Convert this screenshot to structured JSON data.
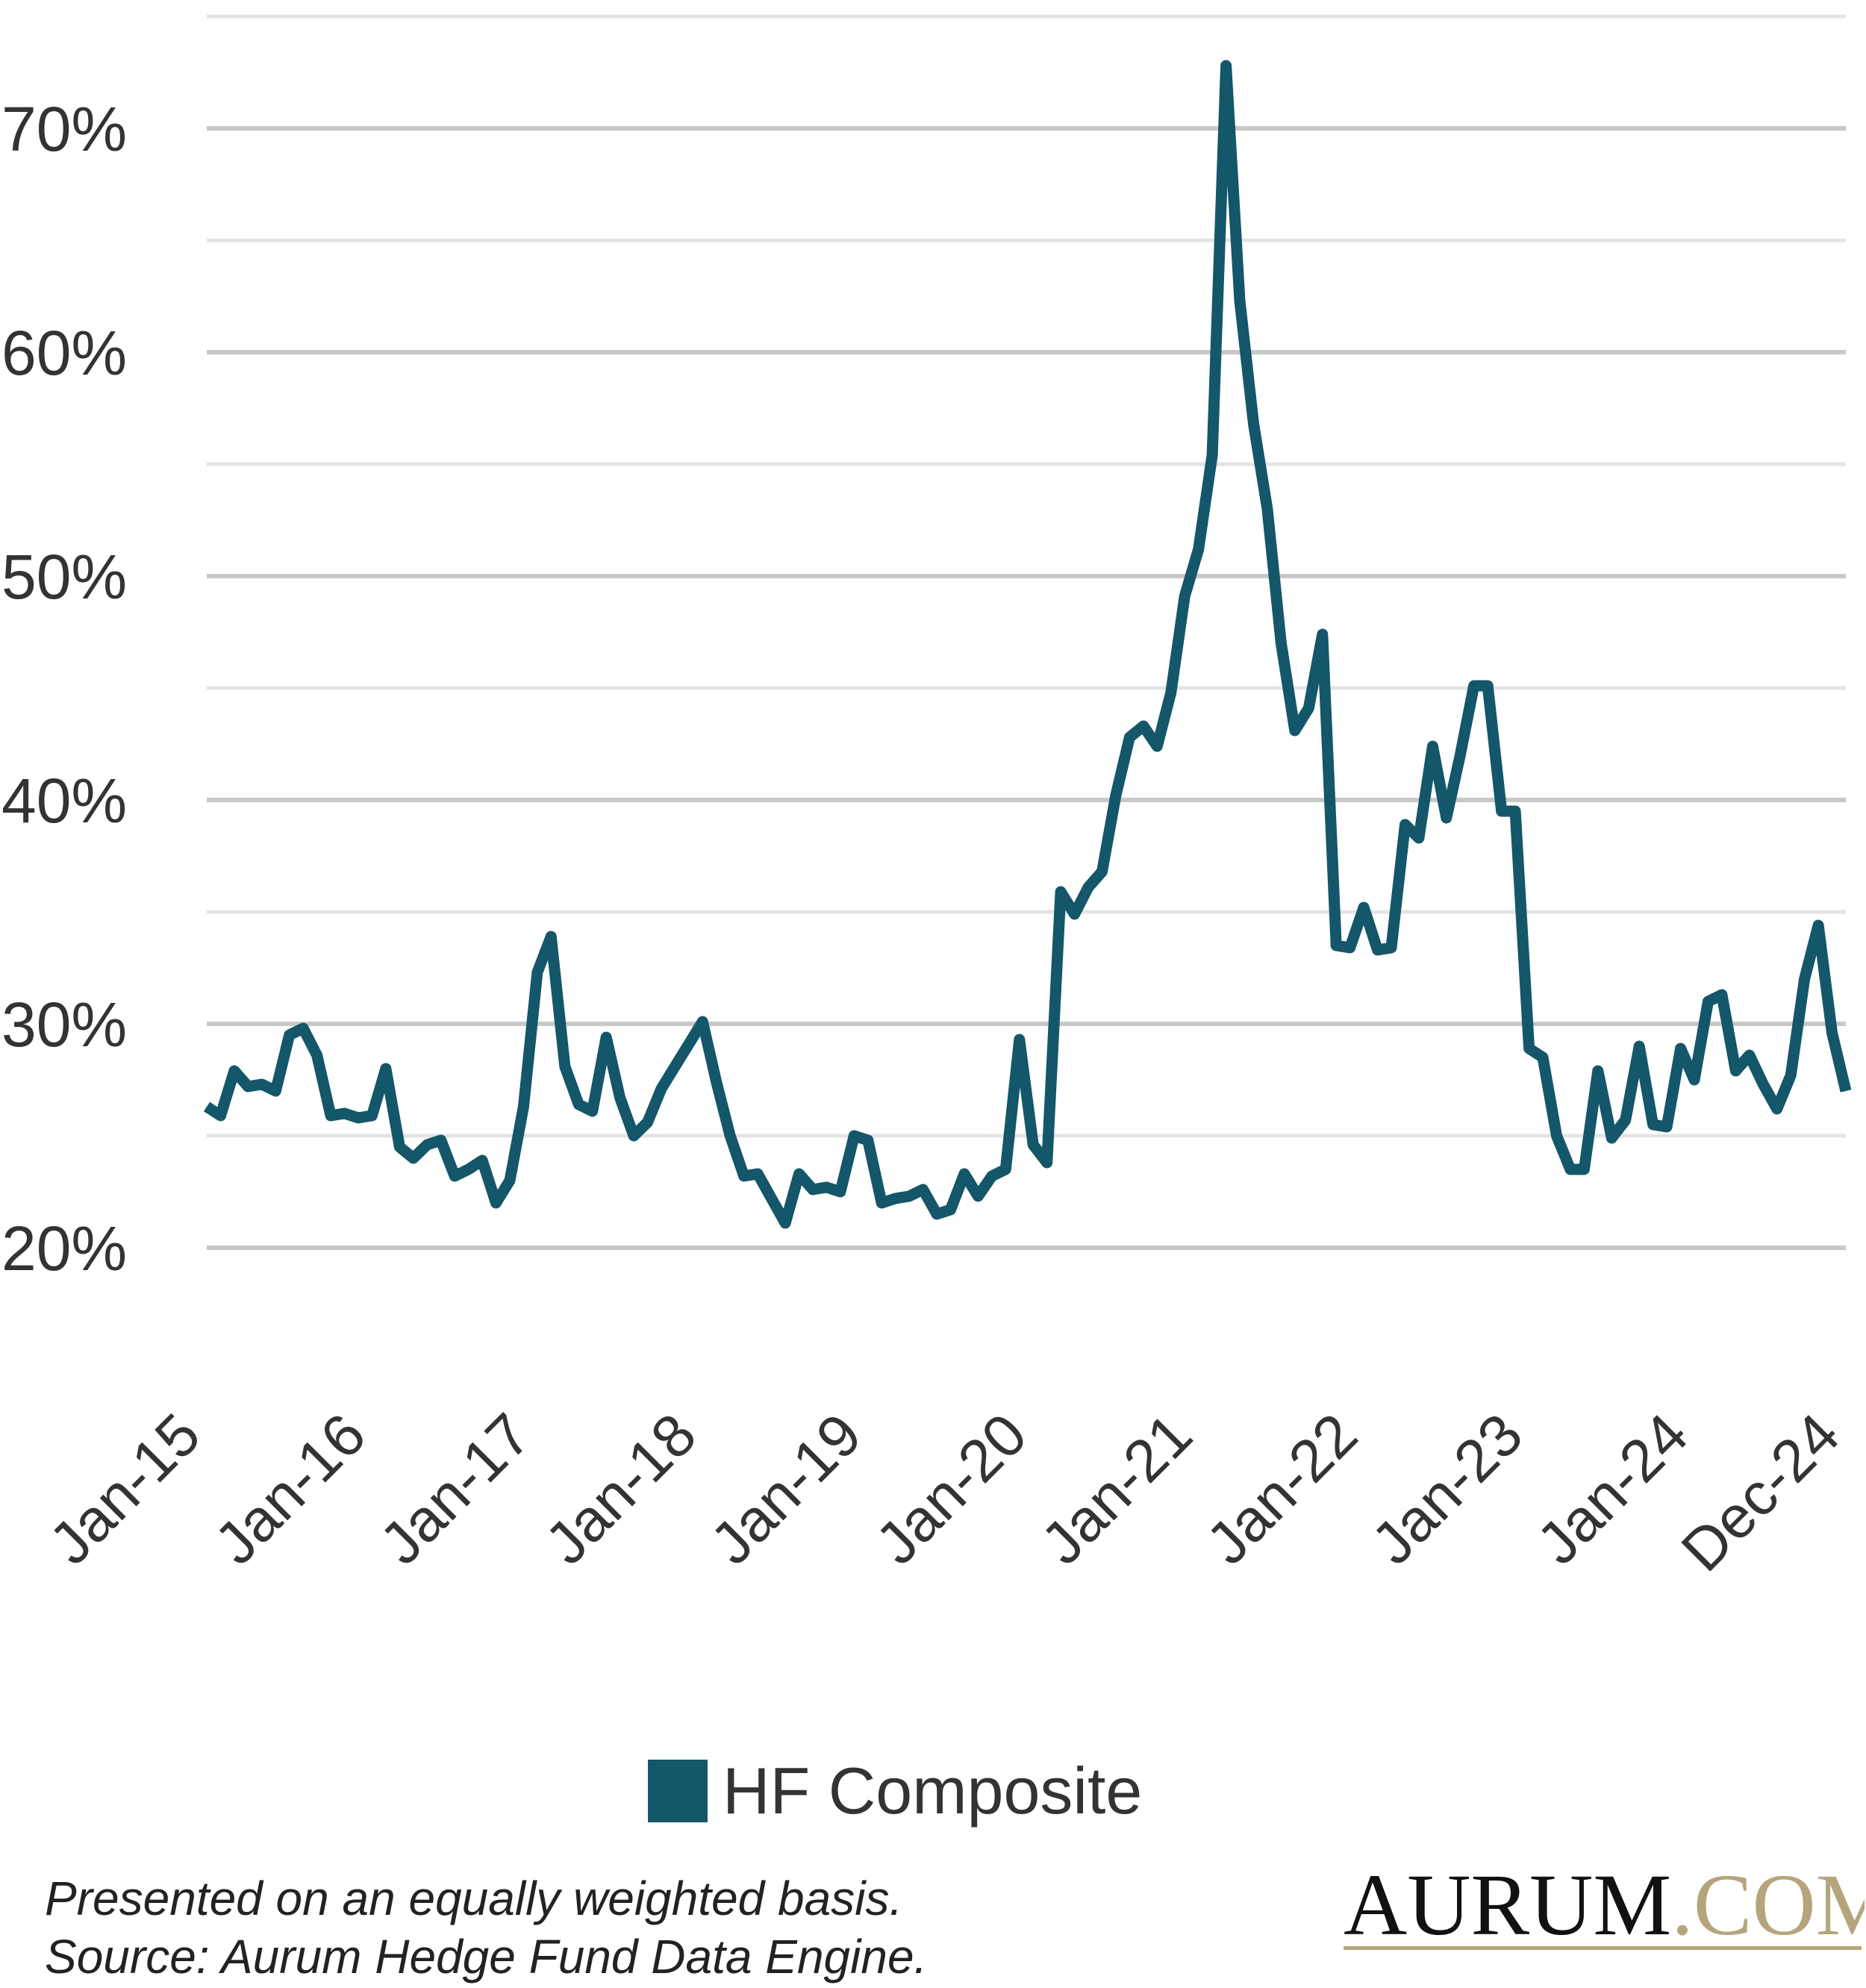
{
  "chart_data": {
    "type": "line",
    "title": "",
    "xlabel": "",
    "ylabel": "",
    "ylim": [
      18,
      75
    ],
    "y_ticks": [
      "20%",
      "30%",
      "40%",
      "50%",
      "60%",
      "70%"
    ],
    "y_tick_values": [
      20,
      30,
      40,
      50,
      60,
      70
    ],
    "minor_gridlines": [
      25,
      35,
      45,
      55,
      65,
      75
    ],
    "grid": true,
    "x_tick_labels": [
      "Jan-15",
      "Jan-16",
      "Jan-17",
      "Jan-18",
      "Jan-19",
      "Jan-20",
      "Jan-21",
      "Jan-22",
      "Jan-23",
      "Jan-24",
      "Dec-24"
    ],
    "x_tick_index": [
      0,
      12,
      24,
      36,
      48,
      60,
      72,
      84,
      96,
      108,
      119
    ],
    "legend_position": "bottom",
    "series": [
      {
        "name": "HF Composite",
        "color": "#14566a",
        "values": [
          26.3,
          25.9,
          27.9,
          27.2,
          27.3,
          27.0,
          29.5,
          29.8,
          28.6,
          25.9,
          26.0,
          25.8,
          25.9,
          28.0,
          24.5,
          24.0,
          24.6,
          24.8,
          23.2,
          23.5,
          23.9,
          22.0,
          23.0,
          26.3,
          32.3,
          33.9,
          28.1,
          26.4,
          26.1,
          29.4,
          26.7,
          25.0,
          25.6,
          27.1,
          28.1,
          29.1,
          30.1,
          27.4,
          25.0,
          23.2,
          23.3,
          22.2,
          21.1,
          23.3,
          22.6,
          22.7,
          22.5,
          25.0,
          24.8,
          22.0,
          22.2,
          22.3,
          22.6,
          21.5,
          21.7,
          23.3,
          22.3,
          23.2,
          23.5,
          29.3,
          24.6,
          23.8,
          35.9,
          34.9,
          36.1,
          36.8,
          40.2,
          42.8,
          43.3,
          42.4,
          44.8,
          49.1,
          51.2,
          55.4,
          72.8,
          62.3,
          56.8,
          53.0,
          47.0,
          43.1,
          44.1,
          47.4,
          33.5,
          33.4,
          35.2,
          33.3,
          33.4,
          38.9,
          38.3,
          42.4,
          39.2,
          42.0,
          45.1,
          45.1,
          39.5,
          39.5,
          28.9,
          28.5,
          25.0,
          23.5,
          23.5,
          27.9,
          24.9,
          25.7,
          29.0,
          25.5,
          25.4,
          28.9,
          27.5,
          31.0,
          31.3,
          27.9,
          28.6,
          27.3,
          26.2,
          27.7,
          32.0,
          34.4,
          29.6,
          27.0
        ]
      }
    ]
  },
  "legend": {
    "label": "HF Composite"
  },
  "footnote": {
    "line1": "Presented on an equally weighted basis.",
    "line2": "Source: Aurum Hedge Fund Data Engine."
  },
  "logo": {
    "name": "AURUM",
    "suffix": ".COM",
    "primary_color": "#111111",
    "suffix_color": "#b5a57c"
  }
}
